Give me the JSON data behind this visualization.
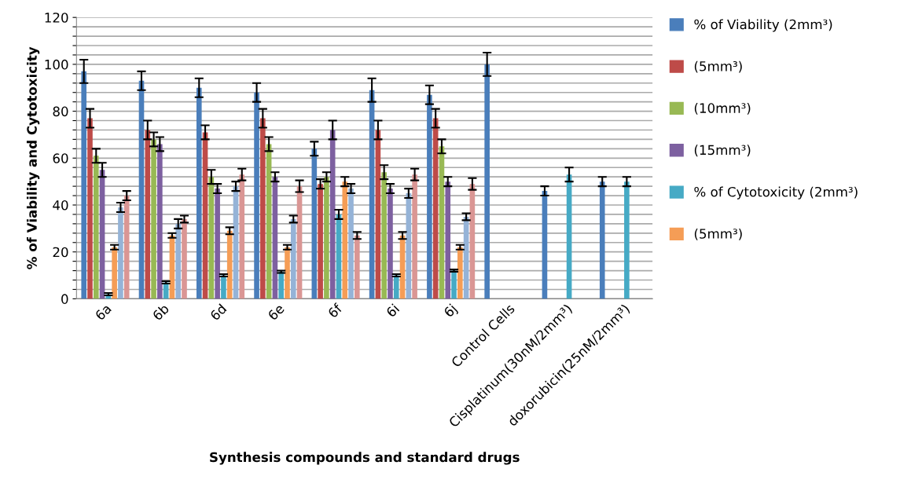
{
  "chart_data": {
    "type": "bar",
    "xlabel": "Synthesis compounds and standard drugs",
    "ylabel": "% of Viability and Cytotoxicity",
    "categories": [
      "6a",
      "6b",
      "6d",
      "6e",
      "6f",
      "6i",
      "6j",
      "Control Cells",
      "Cisplatinum(30nM/2mm³)",
      "doxorubicin(25nM/2mm³)"
    ],
    "series": [
      {
        "name": "% of Viability (2mm³)",
        "color": "#4a7ebb",
        "values": [
          97,
          93,
          90,
          88,
          64,
          89,
          87,
          100,
          46,
          50
        ],
        "errors": [
          5,
          4,
          4,
          4,
          3,
          5,
          4,
          5,
          2,
          2
        ]
      },
      {
        "name": "(5mm³)",
        "color": "#be4b48",
        "values": [
          77,
          72,
          71,
          77,
          49,
          72,
          77,
          null,
          null,
          null
        ],
        "errors": [
          4,
          4,
          3,
          4,
          2,
          4,
          4,
          null,
          null,
          null
        ]
      },
      {
        "name": "(10mm³)",
        "color": "#98b954",
        "values": [
          61,
          68,
          52,
          66,
          52,
          54,
          65,
          null,
          null,
          null
        ],
        "errors": [
          3,
          3,
          3,
          3,
          2,
          3,
          3,
          null,
          null,
          null
        ]
      },
      {
        "name": "(15mm³)",
        "color": "#7d60a0",
        "values": [
          55,
          66,
          47,
          52,
          72,
          47,
          50,
          null,
          null,
          null
        ],
        "errors": [
          3,
          3,
          2,
          2,
          4,
          2,
          2,
          null,
          null,
          null
        ]
      },
      {
        "name": "% of Cytotoxicity (2mm³)",
        "color": "#46aac5",
        "values": [
          2,
          7,
          10,
          11.5,
          36,
          10,
          12,
          null,
          53,
          50
        ],
        "errors": [
          0.5,
          0.5,
          0.5,
          0.5,
          2,
          0.5,
          0.5,
          null,
          3,
          2
        ]
      },
      {
        "name": "(5mm³)",
        "color": "#f59d56",
        "values": [
          22,
          27,
          29,
          22,
          50,
          27,
          22,
          null,
          null,
          null
        ],
        "errors": [
          1,
          1,
          1.5,
          1,
          2,
          1.5,
          1,
          null,
          null,
          null
        ]
      },
      {
        "color": "#95b3d7",
        "values": [
          39,
          32,
          48,
          34,
          47,
          45,
          35,
          null,
          null,
          null
        ],
        "errors": [
          2,
          2,
          2,
          1.5,
          2,
          2,
          1.5,
          null,
          null,
          null
        ]
      },
      {
        "color": "#da9694",
        "values": [
          44,
          34,
          53,
          48,
          27,
          53,
          49,
          null,
          null,
          null
        ],
        "errors": [
          2,
          1.5,
          2.5,
          2.5,
          1.5,
          2.5,
          2.5,
          null,
          null,
          null
        ]
      }
    ],
    "ylim": [
      0,
      120
    ],
    "yticks": [
      0,
      {
        "value": 4,
        "label": null
      },
      {
        "value": 8,
        "label": null
      },
      {
        "value": 12,
        "label": null
      },
      {
        "value": 16,
        "label": null
      },
      20,
      {
        "value": 24,
        "label": null
      },
      {
        "value": 28,
        "label": null
      },
      {
        "value": 32,
        "label": null
      },
      {
        "value": 36,
        "label": null
      },
      40,
      {
        "value": 44,
        "label": null
      },
      {
        "value": 48,
        "label": null
      },
      {
        "value": 52,
        "label": null
      },
      {
        "value": 56,
        "label": null
      },
      60,
      {
        "value": 64,
        "label": null
      },
      {
        "value": 68,
        "label": null
      },
      {
        "value": 72,
        "label": null
      },
      {
        "value": 76,
        "label": null
      },
      80,
      {
        "value": 84,
        "label": null
      },
      {
        "value": 88,
        "label": null
      },
      {
        "value": 92,
        "label": null
      },
      {
        "value": 96,
        "label": null
      },
      100,
      {
        "value": 104,
        "label": null
      },
      {
        "value": 108,
        "label": null
      },
      {
        "value": 112,
        "label": null
      },
      {
        "value": 116,
        "label": null
      },
      120
    ],
    "grid": "y",
    "legend": "right"
  }
}
